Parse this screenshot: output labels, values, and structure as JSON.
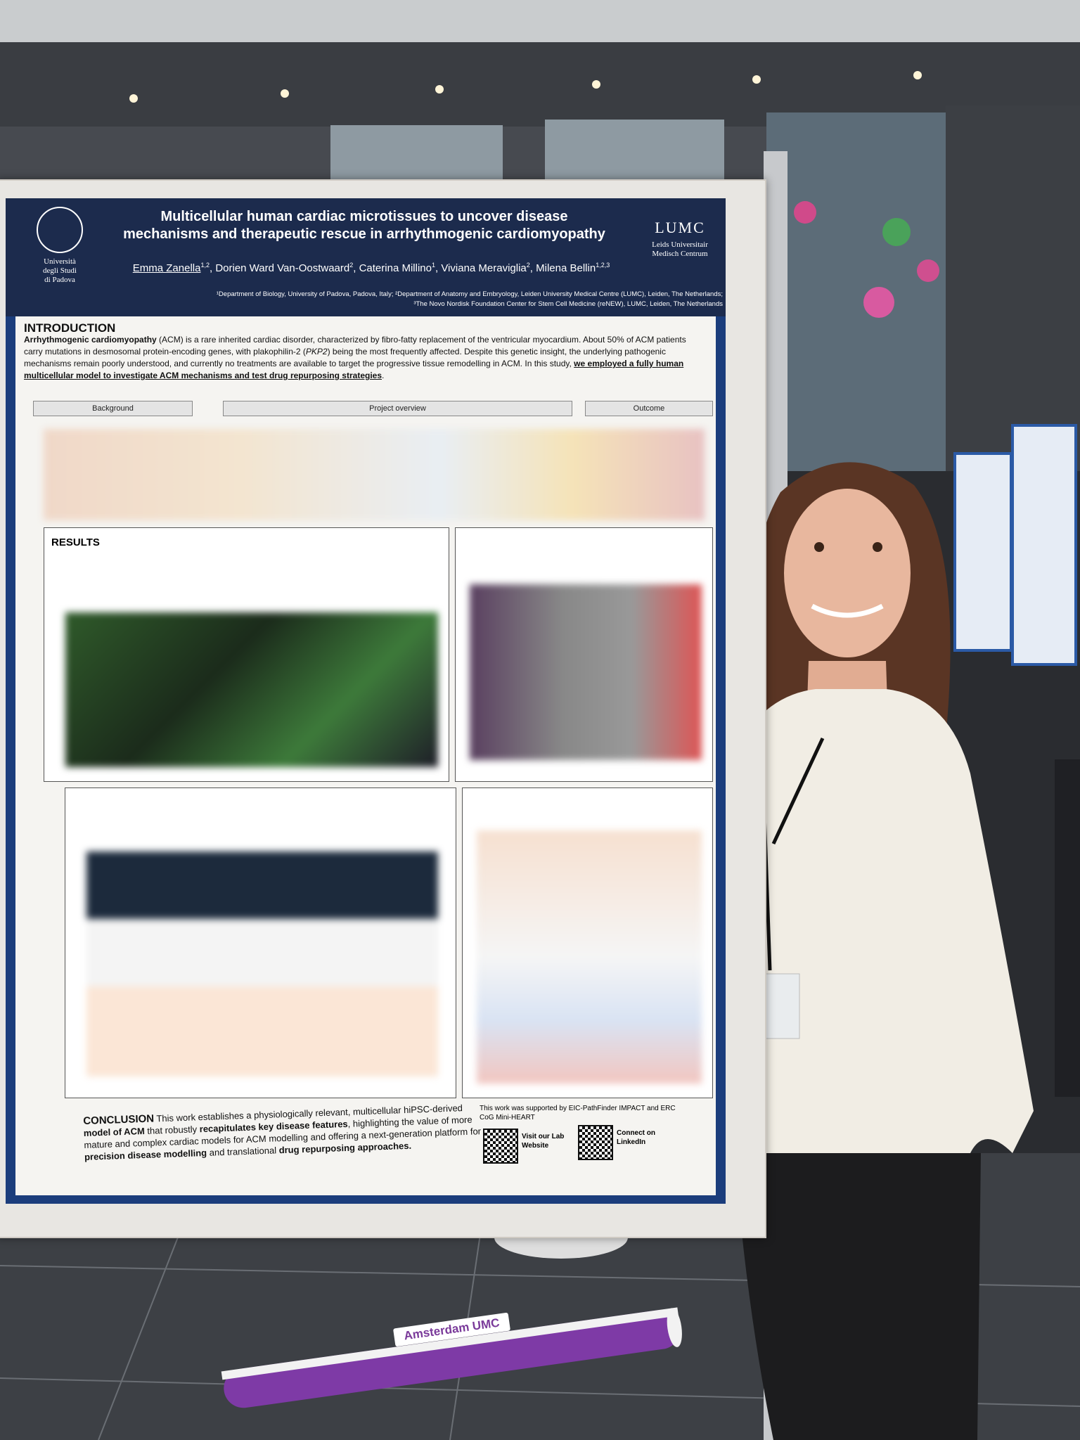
{
  "poster": {
    "title": "Multicellular human cardiac microtissues to uncover disease mechanisms and therapeutic rescue in arrhythmogenic cardiomyopathy",
    "left_logo": {
      "line1": "Università",
      "line2": "degli Studi",
      "line3": "di Padova"
    },
    "right_logo": {
      "mark": "LUMC",
      "name": "Leids Universitair Medisch Centrum"
    },
    "authors": [
      {
        "name": "Emma Zanella",
        "sup": "1,2"
      },
      {
        "name": "Dorien Ward Van-Oostwaard",
        "sup": "2"
      },
      {
        "name": "Caterina Millino",
        "sup": "1"
      },
      {
        "name": "Viviana Meraviglia",
        "sup": "2"
      },
      {
        "name": "Milena Bellin",
        "sup": "1,2,3"
      }
    ],
    "affiliations": [
      "¹Department of Biology, University of Padova, Padova, Italy; ²Department of Anatomy and Embryology, Leiden University Medical Centre (LUMC), Leiden, The Netherlands;",
      "³The Novo Nordisk Foundation Center for Stem Cell Medicine (reNEW), LUMC, Leiden, The Netherlands"
    ],
    "introduction": {
      "heading": "INTRODUCTION",
      "segments": [
        {
          "text": "Arrhythmogenic cardiomyopathy",
          "bold": true
        },
        {
          "text": " (ACM) is a rare inherited cardiac disorder, characterized by fibro-fatty replacement of the ventricular myocardium. About 50% of ACM patients carry mutations in desmosomal protein-encoding genes, with plakophilin-2 (",
          "bold": false
        },
        {
          "text": "PKP2",
          "italic": true
        },
        {
          "text": ") being the most frequently affected. Despite this genetic insight, the underlying pathogenic mechanisms remain poorly understood, and currently no treatments are available to target the progressive tissue remodelling in ACM. In this study, ",
          "bold": false
        },
        {
          "text": "we employed a fully human multicellular model to investigate ACM mechanisms and test drug repurposing strategies",
          "bold": true,
          "underline": true
        },
        {
          "text": ".",
          "bold": false
        }
      ]
    },
    "panels": [
      "Background",
      "Project overview",
      "Outcome"
    ],
    "results_heading": "RESULTS",
    "conclusion": {
      "heading": "CONCLUSION",
      "segments": [
        {
          "text": " This work establishes a physiologically relevant, multicellular hiPSC-derived ",
          "bold": false
        },
        {
          "text": "model of ACM",
          "bold": true
        },
        {
          "text": " that robustly ",
          "bold": false
        },
        {
          "text": "recapitulates key disease features",
          "bold": true
        },
        {
          "text": ", highlighting the value of more mature and complex cardiac models for ACM modelling and offering a next-generation platform for ",
          "bold": false
        },
        {
          "text": "precision disease modelling",
          "bold": true
        },
        {
          "text": " and translational ",
          "bold": false
        },
        {
          "text": "drug repurposing approaches.",
          "bold": true
        }
      ]
    },
    "funding": "This work was supported by EIC-PathFinder IMPACT and ERC CoG Mini-HEART",
    "qr_labels": [
      "Visit our Lab Website",
      "Connect on LinkedIn"
    ]
  },
  "banner": "Amsterdam UMC"
}
